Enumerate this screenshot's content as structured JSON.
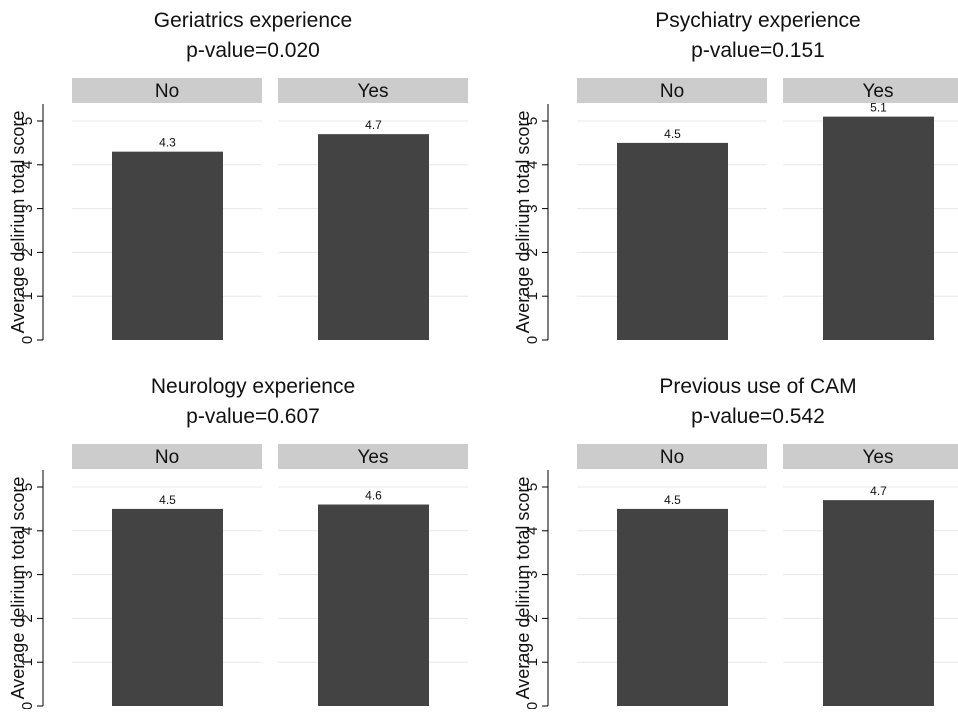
{
  "colors": {
    "bar": "#434343",
    "header_fill": "#cccccc",
    "grid": "#e8e8e8",
    "axis": "#000000"
  },
  "chart_data": [
    {
      "type": "bar",
      "title": "Geriatrics experience",
      "subtitle": "p-value=0.020",
      "ylabel": "Average delirium total score",
      "categories": [
        "No",
        "Yes"
      ],
      "values": [
        4.3,
        4.7
      ],
      "data_labels": [
        "4.3",
        "4.7"
      ],
      "ylim": [
        0,
        5.4
      ],
      "yticks": [
        0,
        1,
        2,
        3,
        4,
        5
      ],
      "grid": true
    },
    {
      "type": "bar",
      "title": "Psychiatry experience",
      "subtitle": "p-value=0.151",
      "ylabel": "Average delirium total score",
      "categories": [
        "No",
        "Yes"
      ],
      "values": [
        4.5,
        5.1
      ],
      "data_labels": [
        "4.5",
        "5.1"
      ],
      "ylim": [
        0,
        5.4
      ],
      "yticks": [
        0,
        1,
        2,
        3,
        4,
        5
      ],
      "grid": true
    },
    {
      "type": "bar",
      "title": "Neurology experience",
      "subtitle": "p-value=0.607",
      "ylabel": "Average delirium total score",
      "categories": [
        "No",
        "Yes"
      ],
      "values": [
        4.5,
        4.6
      ],
      "data_labels": [
        "4.5",
        "4.6"
      ],
      "ylim": [
        0,
        5.4
      ],
      "yticks": [
        0,
        1,
        2,
        3,
        4,
        5
      ],
      "grid": true
    },
    {
      "type": "bar",
      "title": "Previous use of CAM",
      "subtitle": "p-value=0.542",
      "ylabel": "Average delirium total score",
      "categories": [
        "No",
        "Yes"
      ],
      "values": [
        4.5,
        4.7
      ],
      "data_labels": [
        "4.5",
        "4.7"
      ],
      "ylim": [
        0,
        5.4
      ],
      "yticks": [
        0,
        1,
        2,
        3,
        4,
        5
      ],
      "grid": true
    }
  ]
}
